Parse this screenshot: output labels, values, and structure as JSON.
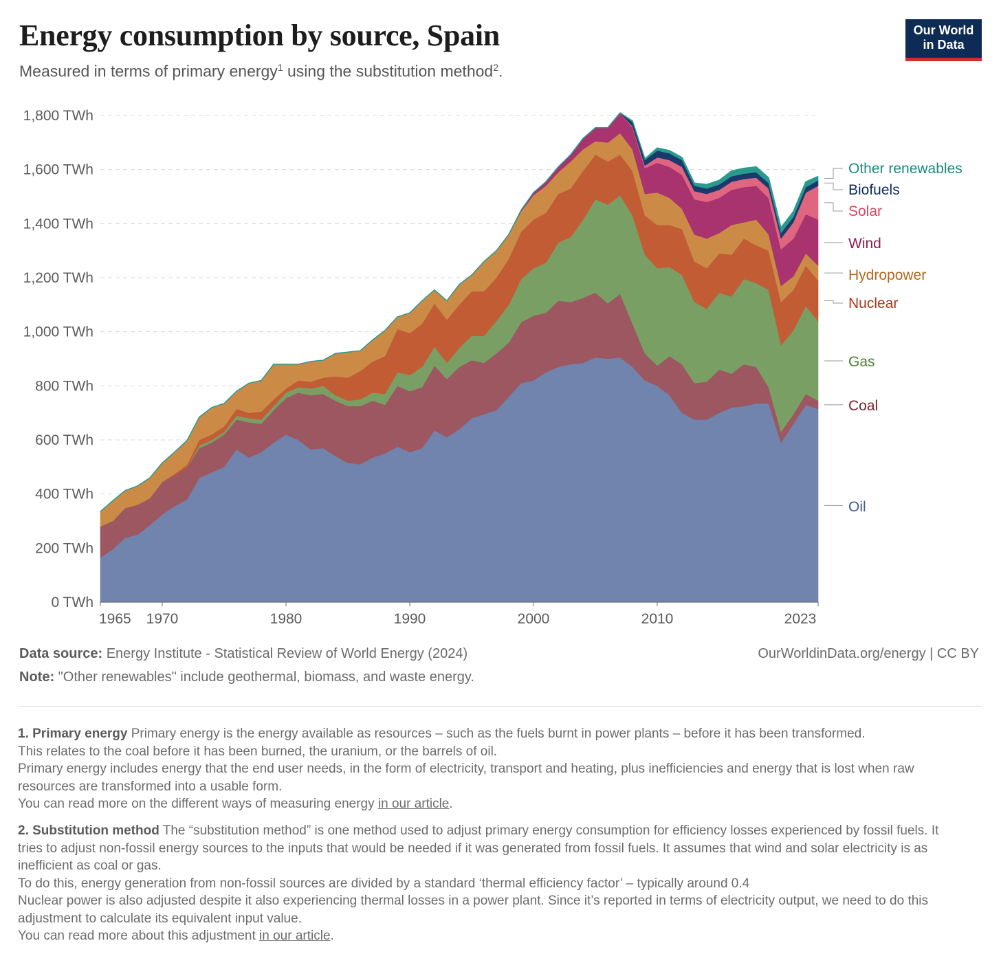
{
  "header": {
    "title": "Energy consumption by source, Spain",
    "subtitle_main": "Measured in terms of primary energy",
    "subtitle_sup1": "1",
    "subtitle_mid": " using the substitution method",
    "subtitle_sup2": "2",
    "subtitle_end": ".",
    "logo_line1": "Our World",
    "logo_line2": "in Data"
  },
  "chart_data": {
    "type": "area",
    "stacked": true,
    "title": "Energy consumption by source, Spain",
    "ylabel": "",
    "ylim": [
      0,
      1800
    ],
    "y_ticks": [
      0,
      200,
      400,
      600,
      800,
      1000,
      1200,
      1400,
      1600,
      1800
    ],
    "y_tick_suffix": " TWh",
    "x_ticks": [
      1965,
      1970,
      1980,
      1990,
      2000,
      2010,
      2023
    ],
    "grid": "horizontal dashed",
    "legend": "right, labels at series ends",
    "x": [
      1965,
      1966,
      1967,
      1968,
      1969,
      1970,
      1971,
      1972,
      1973,
      1974,
      1975,
      1976,
      1977,
      1978,
      1979,
      1980,
      1981,
      1982,
      1983,
      1984,
      1985,
      1986,
      1987,
      1988,
      1989,
      1990,
      1991,
      1992,
      1993,
      1994,
      1995,
      1996,
      1997,
      1998,
      1999,
      2000,
      2001,
      2002,
      2003,
      2004,
      2005,
      2006,
      2007,
      2008,
      2009,
      2010,
      2011,
      2012,
      2013,
      2014,
      2015,
      2016,
      2017,
      2018,
      2019,
      2020,
      2021,
      2022,
      2023
    ],
    "series": [
      {
        "name": "Oil",
        "color": "#7084ad",
        "values": [
          165,
          195,
          238,
          250,
          285,
          325,
          355,
          380,
          460,
          480,
          500,
          565,
          535,
          555,
          590,
          620,
          600,
          565,
          570,
          540,
          515,
          510,
          535,
          550,
          575,
          555,
          570,
          635,
          610,
          640,
          680,
          695,
          710,
          760,
          810,
          820,
          850,
          870,
          880,
          885,
          905,
          900,
          905,
          870,
          820,
          800,
          765,
          700,
          675,
          675,
          700,
          720,
          725,
          735,
          735,
          590,
          660,
          730,
          715
        ]
      },
      {
        "name": "Coal",
        "color": "#9c5761",
        "values": [
          115,
          105,
          110,
          110,
          100,
          120,
          115,
          118,
          110,
          110,
          120,
          110,
          130,
          105,
          120,
          135,
          175,
          200,
          200,
          205,
          210,
          215,
          210,
          180,
          225,
          225,
          225,
          240,
          215,
          230,
          215,
          190,
          210,
          200,
          225,
          240,
          220,
          245,
          230,
          240,
          240,
          205,
          235,
          160,
          100,
          75,
          145,
          180,
          135,
          140,
          160,
          125,
          155,
          135,
          60,
          40,
          35,
          40,
          30
        ]
      },
      {
        "name": "Gas",
        "color": "#7a9f64",
        "values": [
          0,
          0,
          0,
          0,
          0,
          0,
          0,
          0,
          10,
          10,
          10,
          15,
          15,
          15,
          15,
          20,
          20,
          25,
          30,
          20,
          20,
          25,
          30,
          40,
          50,
          60,
          75,
          70,
          60,
          70,
          90,
          100,
          120,
          140,
          160,
          175,
          185,
          215,
          240,
          290,
          345,
          365,
          365,
          400,
          365,
          360,
          330,
          330,
          300,
          270,
          285,
          285,
          315,
          310,
          360,
          320,
          310,
          325,
          295
        ]
      },
      {
        "name": "Nuclear",
        "color": "#c25c35",
        "values": [
          0,
          0,
          0,
          0,
          0,
          0,
          5,
          10,
          20,
          20,
          20,
          25,
          20,
          30,
          25,
          15,
          25,
          25,
          30,
          70,
          85,
          105,
          115,
          140,
          160,
          155,
          160,
          160,
          160,
          160,
          165,
          165,
          160,
          170,
          175,
          180,
          185,
          180,
          180,
          180,
          165,
          160,
          150,
          165,
          145,
          160,
          155,
          170,
          150,
          150,
          145,
          155,
          150,
          140,
          145,
          160,
          150,
          150,
          150
        ]
      },
      {
        "name": "Hydropower",
        "color": "#cb8b47",
        "values": [
          55,
          75,
          65,
          70,
          75,
          70,
          80,
          90,
          85,
          100,
          85,
          65,
          110,
          115,
          130,
          90,
          60,
          75,
          65,
          85,
          95,
          75,
          80,
          95,
          45,
          75,
          85,
          50,
          70,
          75,
          60,
          110,
          100,
          90,
          75,
          90,
          100,
          80,
          100,
          80,
          50,
          70,
          80,
          80,
          80,
          120,
          100,
          75,
          100,
          110,
          75,
          110,
          60,
          95,
          60,
          60,
          50,
          45,
          55
        ]
      },
      {
        "name": "Wind",
        "color": "#a8336e",
        "values": [
          0,
          0,
          0,
          0,
          0,
          0,
          0,
          0,
          0,
          0,
          0,
          0,
          0,
          0,
          0,
          0,
          0,
          0,
          0,
          0,
          0,
          0,
          0,
          0,
          0,
          0,
          0,
          0,
          0,
          0,
          0,
          0,
          0,
          0,
          5,
          10,
          15,
          20,
          25,
          40,
          50,
          55,
          75,
          80,
          95,
          110,
          115,
          125,
          130,
          135,
          130,
          130,
          130,
          125,
          135,
          135,
          140,
          145,
          170
        ]
      },
      {
        "name": "Solar",
        "color": "#e06680",
        "values": [
          0,
          0,
          0,
          0,
          0,
          0,
          0,
          0,
          0,
          0,
          0,
          0,
          0,
          0,
          0,
          0,
          0,
          0,
          0,
          0,
          0,
          0,
          0,
          0,
          0,
          0,
          0,
          0,
          0,
          0,
          0,
          0,
          0,
          0,
          0,
          0,
          0,
          0,
          0,
          0,
          0,
          0,
          0,
          5,
          10,
          20,
          25,
          30,
          30,
          30,
          30,
          30,
          30,
          30,
          35,
          40,
          60,
          80,
          125
        ]
      },
      {
        "name": "Biofuels",
        "color": "#1a3a6b",
        "values": [
          0,
          0,
          0,
          0,
          0,
          0,
          0,
          0,
          0,
          0,
          0,
          0,
          0,
          0,
          0,
          0,
          0,
          0,
          0,
          0,
          0,
          0,
          0,
          0,
          0,
          0,
          0,
          0,
          0,
          0,
          0,
          0,
          0,
          0,
          0,
          0,
          0,
          0,
          0,
          0,
          0,
          0,
          0,
          15,
          20,
          25,
          25,
          25,
          20,
          20,
          20,
          20,
          20,
          20,
          20,
          20,
          20,
          20,
          20
        ]
      },
      {
        "name": "Other renewables",
        "color": "#2a9a8e",
        "values": [
          0,
          0,
          0,
          0,
          0,
          0,
          0,
          0,
          0,
          0,
          0,
          0,
          0,
          0,
          0,
          0,
          0,
          0,
          0,
          0,
          0,
          0,
          0,
          0,
          0,
          0,
          0,
          0,
          0,
          0,
          0,
          0,
          0,
          0,
          0,
          0,
          0,
          0,
          0,
          0,
          0,
          0,
          0,
          5,
          5,
          10,
          10,
          10,
          10,
          15,
          15,
          20,
          20,
          20,
          20,
          20,
          20,
          20,
          15
        ]
      }
    ],
    "legend_colors": {
      "Other renewables": "#1a8a7e",
      "Biofuels": "#0f2a55",
      "Solar": "#d9455f",
      "Wind": "#8c1c53",
      "Hydropower": "#b8651b",
      "Nuclear": "#b03418",
      "Gas": "#4d7a33",
      "Coal": "#7a1f2c",
      "Oil": "#3d5a9a"
    }
  },
  "footer": {
    "source_label": "Data source:",
    "source_text": " Energy Institute - Statistical Review of World Energy (2024)",
    "url_text": "OurWorldinData.org/energy | CC BY",
    "note_label": "Note:",
    "note_text": " \"Other renewables\" include geothermal, biomass, and waste energy."
  },
  "footnotes": {
    "fn1_title": "1. Primary energy",
    "fn1_line1": " Primary energy is the energy available as resources – such as the fuels burnt in power plants – before it has been transformed.",
    "fn1_line2": "This relates to the coal before it has been burned, the uranium, or the barrels of oil.",
    "fn1_line3": "Primary energy includes energy that the end user needs, in the form of electricity, transport and heating, plus inefficiencies and energy that is lost when raw resources are transformed into a usable form.",
    "fn1_line4_pre": "You can read more on the different ways of measuring energy ",
    "fn1_link": "in our article",
    "fn1_line4_post": ".",
    "fn2_title": "2. Substitution method",
    "fn2_line1": " The “substitution method” is one method used to adjust primary energy consumption for efficiency losses experienced by fossil fuels. It tries to adjust non-fossil energy sources to the inputs that would be needed if it was generated from fossil fuels. It assumes that wind and solar electricity is as inefficient as coal or gas.",
    "fn2_line2": "To do this, energy generation from non-fossil sources are divided by a standard ‘thermal efficiency factor’ – typically around 0.4",
    "fn2_line3": "Nuclear power is also adjusted despite it also experiencing thermal losses in a power plant. Since it’s reported in terms of electricity output, we need to do this adjustment to calculate its equivalent input value.",
    "fn2_line4_pre": "You can read more about this adjustment ",
    "fn2_link": "in our article",
    "fn2_line4_post": "."
  }
}
